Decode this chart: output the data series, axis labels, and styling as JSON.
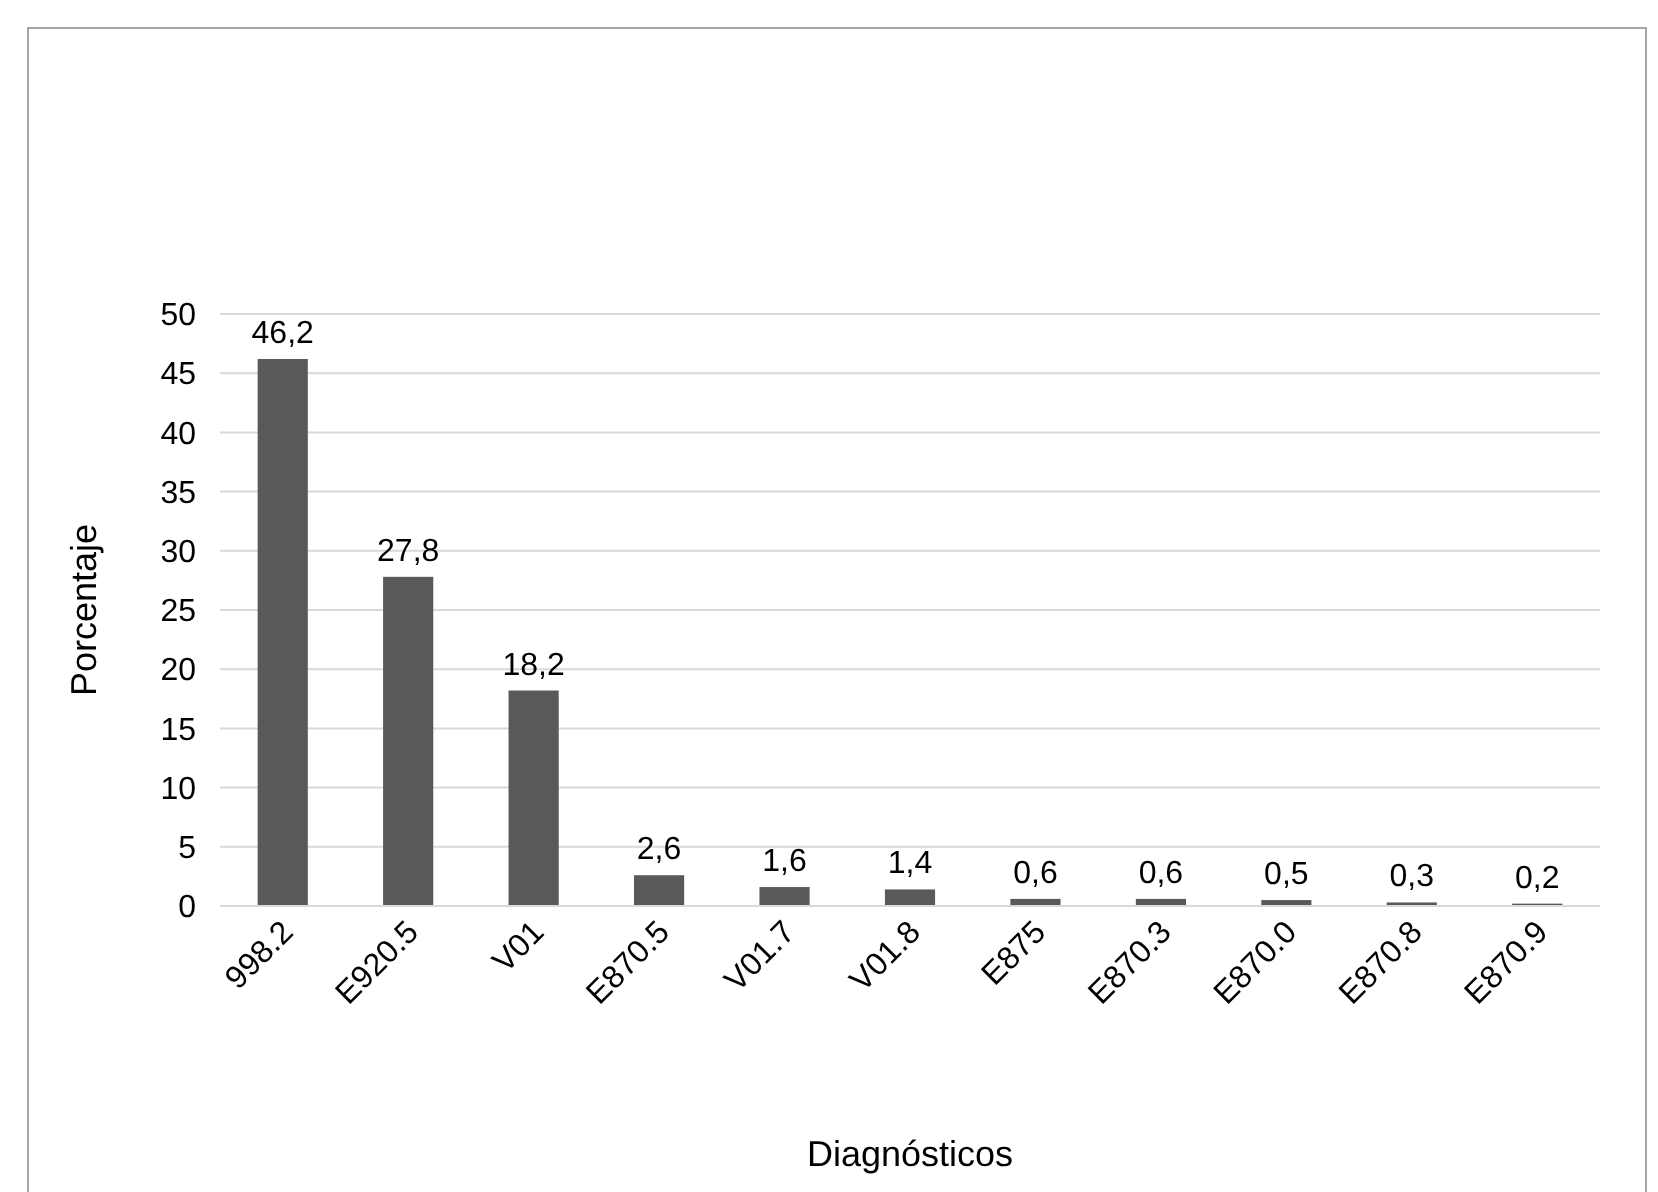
{
  "chart_data": {
    "type": "bar",
    "xlabel": "Diagnósticos",
    "ylabel": "Porcentaje",
    "categories": [
      "998.2",
      "E920.5",
      "V01",
      "E870.5",
      "V01.7",
      "V01.8",
      "E875",
      "E870.3",
      "E870.0",
      "E870.8",
      "E870.9"
    ],
    "values": [
      46.2,
      27.8,
      18.2,
      2.6,
      1.6,
      1.4,
      0.6,
      0.6,
      0.5,
      0.3,
      0.2
    ],
    "value_labels": [
      "46,2",
      "27,8",
      "18,2",
      "2,6",
      "1,6",
      "1,4",
      "0,6",
      "0,6",
      "0,5",
      "0,3",
      "0,2"
    ],
    "color": "#595959",
    "ylim": [
      0,
      50
    ],
    "yticks": [
      0,
      5,
      10,
      15,
      20,
      25,
      30,
      35,
      40,
      45,
      50
    ],
    "grid": "y"
  }
}
